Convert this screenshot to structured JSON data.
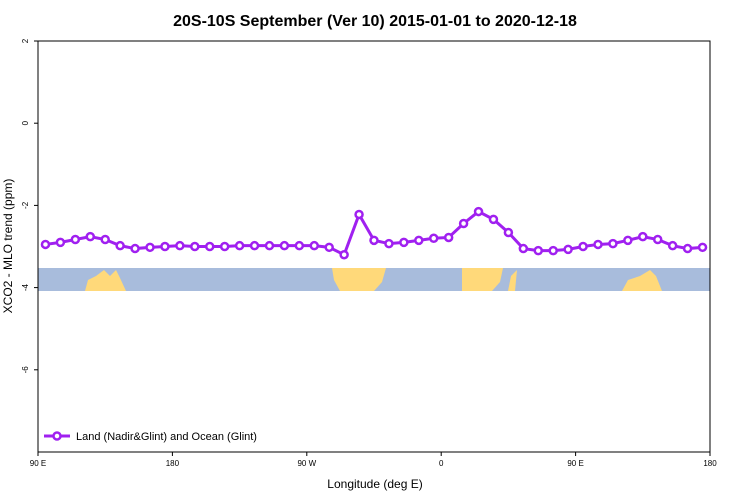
{
  "chart_data": {
    "type": "line",
    "title": "20S-10S September (Ver 10)   2015-01-01 to 2020-12-18",
    "x_label": "Longitude (deg E)",
    "y_label": "XCO2 - MLO trend (ppm)",
    "xlim": [
      90,
      540
    ],
    "ylim": [
      -8,
      2
    ],
    "xticks": [
      {
        "value": 90,
        "label": "90 E"
      },
      180,
      {
        "value": 270,
        "label": "90 W"
      },
      {
        "value": 360,
        "label": "0"
      },
      {
        "value": 450,
        "label": "90 E"
      },
      {
        "value": 540,
        "label": "180"
      }
    ],
    "yticks": [
      -6,
      -4,
      -2,
      0,
      2
    ],
    "legend": "bottom left",
    "x": [
      95,
      105,
      115,
      125,
      135,
      145,
      155,
      165,
      175,
      185,
      195,
      205,
      215,
      225,
      235,
      245,
      255,
      265,
      275,
      285,
      295,
      305,
      315,
      325,
      335,
      345,
      355,
      365,
      375,
      385,
      395,
      405,
      415,
      425,
      435,
      445,
      455,
      465,
      475,
      485,
      495,
      505,
      515,
      525,
      535
    ],
    "series": [
      {
        "name": "Land (Nadir&Glint) and Ocean (Glint)",
        "color": "#a020f0",
        "values": [
          -2.95,
          -2.9,
          -2.83,
          -2.76,
          -2.83,
          -2.98,
          -3.05,
          -3.02,
          -3.0,
          -2.98,
          -3.0,
          -3.0,
          -3.0,
          -2.98,
          -2.98,
          -2.98,
          -2.98,
          -2.98,
          -2.98,
          -3.02,
          -3.2,
          -2.22,
          -2.85,
          -2.93,
          -2.9,
          -2.85,
          -2.8,
          -2.78,
          -2.44,
          -2.15,
          -2.34,
          -2.66,
          -3.05,
          -3.1,
          -3.1,
          -3.07,
          -3.0,
          -2.95,
          -2.93,
          -2.85,
          -2.76,
          -2.83,
          -2.98,
          -3.05,
          -3.02
        ]
      }
    ]
  }
}
